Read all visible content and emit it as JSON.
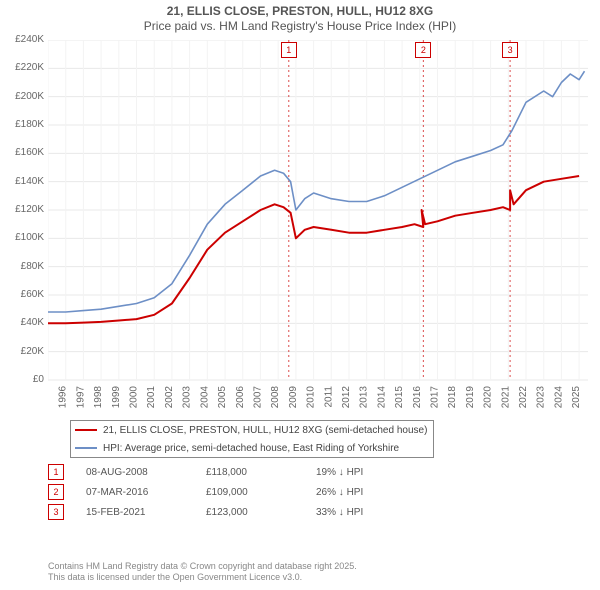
{
  "title": {
    "line1": "21, ELLIS CLOSE, PRESTON, HULL, HU12 8XG",
    "line2": "Price paid vs. HM Land Registry's House Price Index (HPI)"
  },
  "chart": {
    "type": "line",
    "x_min": 1995,
    "x_max": 2025.5,
    "y_min": 0,
    "y_max": 240000,
    "y_ticks": [
      0,
      20000,
      40000,
      60000,
      80000,
      100000,
      120000,
      140000,
      160000,
      180000,
      200000,
      220000,
      240000
    ],
    "y_tick_labels": [
      "£0",
      "£20K",
      "£40K",
      "£60K",
      "£80K",
      "£100K",
      "£120K",
      "£140K",
      "£160K",
      "£180K",
      "£200K",
      "£220K",
      "£240K"
    ],
    "x_ticks": [
      1995,
      1996,
      1997,
      1998,
      1999,
      2000,
      2001,
      2002,
      2003,
      2004,
      2005,
      2006,
      2007,
      2008,
      2009,
      2010,
      2011,
      2012,
      2013,
      2014,
      2015,
      2016,
      2017,
      2018,
      2019,
      2020,
      2021,
      2022,
      2023,
      2024,
      2025
    ],
    "grid_color": "#e8e8e8",
    "grid_color_light": "#f3f3f3",
    "axis_color": "#bbbbbb",
    "background": "#ffffff",
    "series": [
      {
        "id": "price_paid",
        "color": "#cc0000",
        "width": 2,
        "points": [
          [
            1995,
            40000
          ],
          [
            1996,
            40000
          ],
          [
            1997,
            40500
          ],
          [
            1998,
            41000
          ],
          [
            1999,
            42000
          ],
          [
            2000,
            43000
          ],
          [
            2001,
            46000
          ],
          [
            2002,
            54000
          ],
          [
            2003,
            72000
          ],
          [
            2004,
            92000
          ],
          [
            2005,
            104000
          ],
          [
            2006,
            112000
          ],
          [
            2007,
            120000
          ],
          [
            2007.8,
            124000
          ],
          [
            2008.3,
            122000
          ],
          [
            2008.7,
            118000
          ],
          [
            2009,
            100000
          ],
          [
            2009.5,
            106000
          ],
          [
            2010,
            108000
          ],
          [
            2011,
            106000
          ],
          [
            2012,
            104000
          ],
          [
            2013,
            104000
          ],
          [
            2014,
            106000
          ],
          [
            2015,
            108000
          ],
          [
            2015.7,
            110000
          ],
          [
            2016.2,
            108000
          ],
          [
            2016.1,
            120000
          ],
          [
            2016.3,
            110000
          ],
          [
            2017,
            112000
          ],
          [
            2018,
            116000
          ],
          [
            2019,
            118000
          ],
          [
            2020,
            120000
          ],
          [
            2020.7,
            122000
          ],
          [
            2021.1,
            120000
          ],
          [
            2021.1,
            134000
          ],
          [
            2021.3,
            124000
          ],
          [
            2022,
            134000
          ],
          [
            2023,
            140000
          ],
          [
            2024,
            142000
          ],
          [
            2025,
            144000
          ]
        ]
      },
      {
        "id": "hpi",
        "color": "#6d8fc6",
        "width": 1.6,
        "points": [
          [
            1995,
            48000
          ],
          [
            1996,
            48000
          ],
          [
            1997,
            49000
          ],
          [
            1998,
            50000
          ],
          [
            1999,
            52000
          ],
          [
            2000,
            54000
          ],
          [
            2001,
            58000
          ],
          [
            2002,
            68000
          ],
          [
            2003,
            88000
          ],
          [
            2004,
            110000
          ],
          [
            2005,
            124000
          ],
          [
            2006,
            134000
          ],
          [
            2007,
            144000
          ],
          [
            2007.8,
            148000
          ],
          [
            2008.3,
            146000
          ],
          [
            2008.7,
            140000
          ],
          [
            2009,
            120000
          ],
          [
            2009.5,
            128000
          ],
          [
            2010,
            132000
          ],
          [
            2011,
            128000
          ],
          [
            2012,
            126000
          ],
          [
            2013,
            126000
          ],
          [
            2014,
            130000
          ],
          [
            2015,
            136000
          ],
          [
            2016,
            142000
          ],
          [
            2017,
            148000
          ],
          [
            2018,
            154000
          ],
          [
            2019,
            158000
          ],
          [
            2020,
            162000
          ],
          [
            2020.7,
            166000
          ],
          [
            2021.2,
            176000
          ],
          [
            2022,
            196000
          ],
          [
            2023,
            204000
          ],
          [
            2023.5,
            200000
          ],
          [
            2024,
            210000
          ],
          [
            2024.5,
            216000
          ],
          [
            2025,
            212000
          ],
          [
            2025.3,
            218000
          ]
        ]
      }
    ],
    "events": [
      {
        "n": "1",
        "x": 2008.6,
        "color": "#cc0000",
        "date": "08-AUG-2008",
        "price": "£118,000",
        "hpi": "19% ↓ HPI"
      },
      {
        "n": "2",
        "x": 2016.2,
        "color": "#cc0000",
        "date": "07-MAR-2016",
        "price": "£109,000",
        "hpi": "26% ↓ HPI"
      },
      {
        "n": "3",
        "x": 2021.1,
        "color": "#cc0000",
        "date": "15-FEB-2021",
        "price": "£123,000",
        "hpi": "33% ↓ HPI"
      }
    ]
  },
  "legend": [
    {
      "color": "#cc0000",
      "label": "21, ELLIS CLOSE, PRESTON, HULL, HU12 8XG (semi-detached house)"
    },
    {
      "color": "#6d8fc6",
      "label": "HPI: Average price, semi-detached house, East Riding of Yorkshire"
    }
  ],
  "credit": {
    "line1": "Contains HM Land Registry data © Crown copyright and database right 2025.",
    "line2": "This data is licensed under the Open Government Licence v3.0."
  }
}
